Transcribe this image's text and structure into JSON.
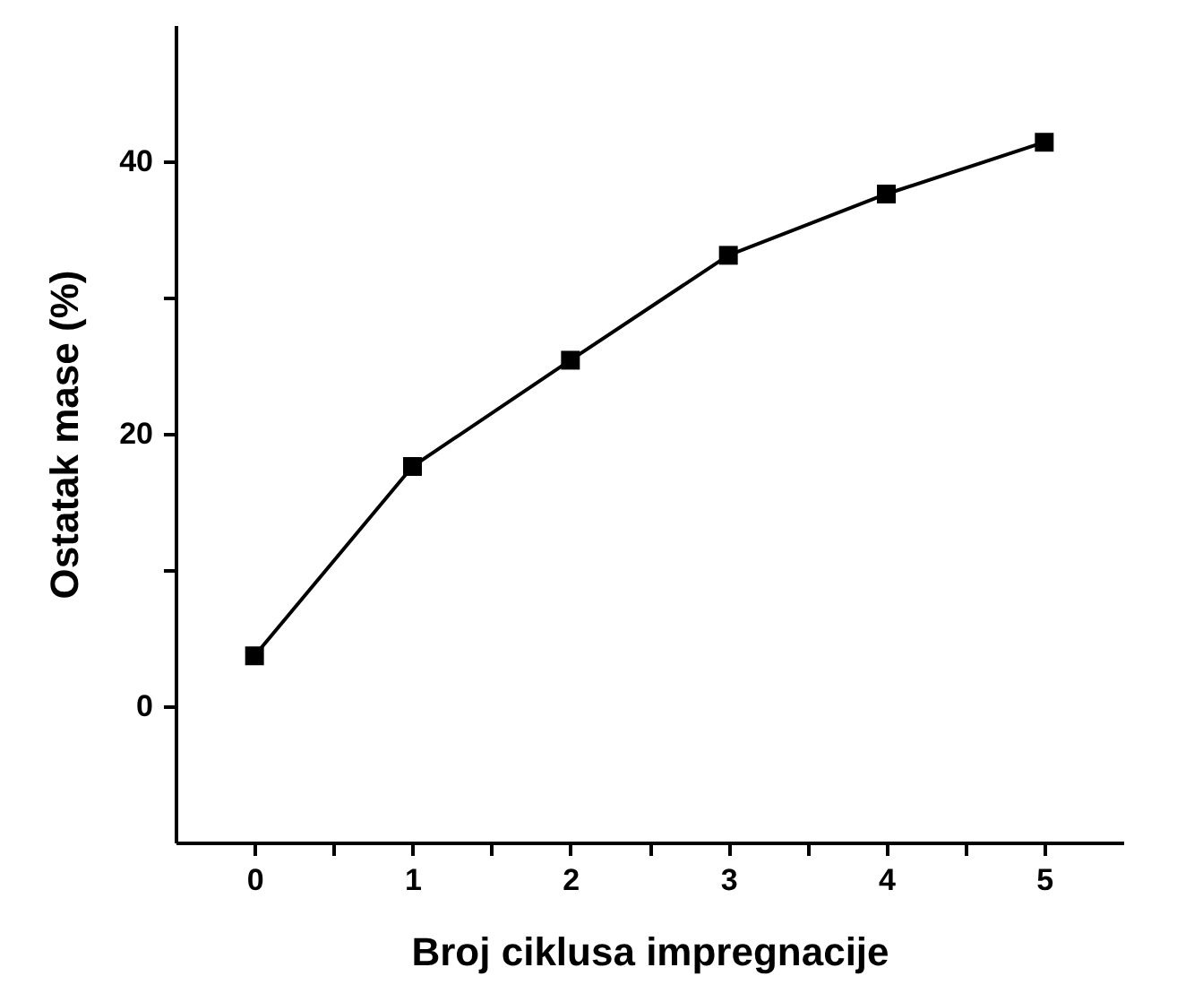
{
  "chart_data": {
    "type": "line",
    "xlabel": "Broj ciklusa impregnacije",
    "ylabel": "Ostatak mase (%)",
    "x": [
      0,
      1,
      2,
      3,
      4,
      5
    ],
    "series": [
      {
        "color": "#000000",
        "values": [
          3.7,
          17.6,
          25.4,
          33.1,
          37.6,
          41.4
        ]
      }
    ],
    "xlim": [
      -0.5,
      5.5
    ],
    "ylim": [
      -10,
      50
    ],
    "xticks": [
      0,
      1,
      2,
      3,
      4,
      5,
      {
        "value": 0.5,
        "label": null
      },
      {
        "value": 1.5,
        "label": null
      },
      {
        "value": 2.5,
        "label": null
      },
      {
        "value": 3.5,
        "label": null
      },
      {
        "value": 4.5,
        "label": null
      }
    ],
    "yticks": [
      0,
      20,
      40,
      {
        "value": 10,
        "label": null
      },
      {
        "value": 30,
        "label": null
      }
    ],
    "marker": "square",
    "line_style": "solid",
    "grid": false
  }
}
